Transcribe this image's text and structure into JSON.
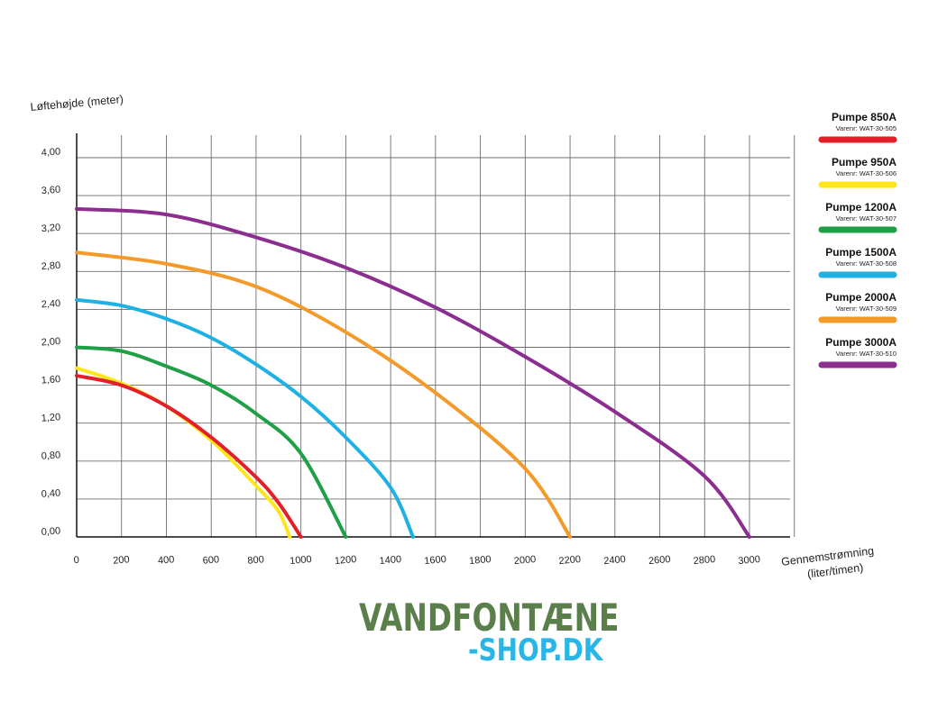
{
  "chart_data": {
    "type": "line",
    "ylabel": "Løftehøjde (meter)",
    "xlabel_line1": "Gennemstrømning",
    "xlabel_line2": "(liter/timen)",
    "xlim": [
      0,
      3000
    ],
    "ylim": [
      0,
      4.0
    ],
    "x_ticks": [
      0,
      200,
      400,
      600,
      800,
      1000,
      1200,
      1400,
      1600,
      1800,
      2000,
      2200,
      2400,
      2600,
      2800,
      3000
    ],
    "x_tick_labels": [
      "0",
      "200",
      "400",
      "600",
      "800",
      "1000",
      "1200",
      "1400",
      "1600",
      "1800",
      "2000",
      "2200",
      "2400",
      "2600",
      "2800",
      "3000"
    ],
    "y_ticks": [
      0,
      0.4,
      0.8,
      1.2,
      1.6,
      2.0,
      2.4,
      2.8,
      3.2,
      3.6,
      4.0
    ],
    "y_tick_labels": [
      "0,00",
      "0,40",
      "0,80",
      "1,20",
      "1,60",
      "2,00",
      "2,40",
      "2,80",
      "3,20",
      "3,60",
      "4,00"
    ],
    "grid": true,
    "legend_position": "right",
    "series": [
      {
        "name": "Pumpe 850A",
        "sku": "Varenr: WAT-30-505",
        "color": "#e3202a",
        "max_flow": 1000,
        "max_head": 1.7,
        "x": [
          0,
          200,
          400,
          600,
          800,
          900,
          1000
        ],
        "y": [
          1.7,
          1.6,
          1.38,
          1.05,
          0.63,
          0.36,
          0.0
        ]
      },
      {
        "name": "Pumpe 950A",
        "sku": "Varenr: WAT-30-506",
        "color": "#ffe61a",
        "max_flow": 950,
        "max_head": 1.78,
        "x": [
          0,
          200,
          400,
          600,
          800,
          900,
          950
        ],
        "y": [
          1.78,
          1.62,
          1.38,
          1.02,
          0.54,
          0.27,
          0.0
        ]
      },
      {
        "name": "Pumpe 1200A",
        "sku": "Varenr: WAT-30-507",
        "color": "#1fa046",
        "max_flow": 1200,
        "max_head": 2.0,
        "x": [
          0,
          200,
          400,
          600,
          800,
          1000,
          1200
        ],
        "y": [
          2.0,
          1.96,
          1.8,
          1.6,
          1.3,
          0.88,
          0.0
        ]
      },
      {
        "name": "Pumpe 1500A",
        "sku": "Varenr: WAT-30-508",
        "color": "#1fb0e4",
        "max_flow": 1500,
        "max_head": 2.5,
        "x": [
          0,
          200,
          400,
          600,
          800,
          1000,
          1200,
          1400,
          1500
        ],
        "y": [
          2.5,
          2.44,
          2.3,
          2.1,
          1.82,
          1.48,
          1.05,
          0.52,
          0.0
        ]
      },
      {
        "name": "Pumpe 2000A",
        "sku": "Varenr: WAT-30-509",
        "color": "#f39a2b",
        "max_flow": 2200,
        "max_head": 3.0,
        "x": [
          0,
          400,
          800,
          1200,
          1600,
          2000,
          2200
        ],
        "y": [
          3.0,
          2.88,
          2.64,
          2.16,
          1.52,
          0.72,
          0.0
        ]
      },
      {
        "name": "Pumpe 3000A",
        "sku": "Varenr: WAT-30-510",
        "color": "#8b2e8f",
        "max_flow": 3000,
        "max_head": 3.46,
        "x": [
          0,
          400,
          800,
          1200,
          1600,
          2000,
          2400,
          2800,
          3000
        ],
        "y": [
          3.46,
          3.4,
          3.16,
          2.84,
          2.42,
          1.9,
          1.32,
          0.64,
          0.0
        ]
      }
    ]
  },
  "brand": {
    "line1": "VANDFONTÆNE",
    "line2": "-SHOP.DK"
  }
}
